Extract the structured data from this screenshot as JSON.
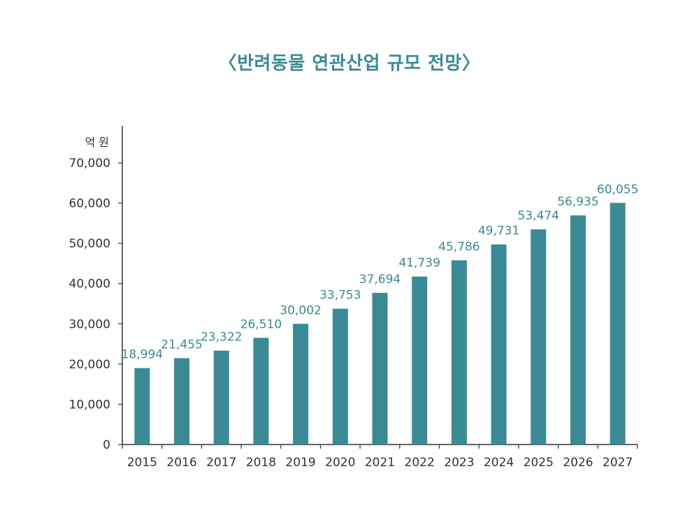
{
  "chart_data": {
    "type": "bar",
    "title": "〈반려동물 연관산업 규모 전망〉",
    "ylabel": "억 원",
    "xlabel": "",
    "ylim": [
      0,
      70000
    ],
    "yticks": [
      0,
      10000,
      20000,
      30000,
      40000,
      50000,
      60000,
      70000
    ],
    "ytick_labels": [
      "0",
      "10,000",
      "20,000",
      "30,000",
      "40,000",
      "50,000",
      "60,000",
      "70,000"
    ],
    "categories": [
      "2015",
      "2016",
      "2017",
      "2018",
      "2019",
      "2020",
      "2021",
      "2022",
      "2023",
      "2024",
      "2025",
      "2026",
      "2027"
    ],
    "values": [
      18994,
      21455,
      23322,
      26510,
      30002,
      33753,
      37694,
      41739,
      45786,
      49731,
      53474,
      56935,
      60055
    ],
    "value_labels": [
      "18,994",
      "21,455",
      "23,322",
      "26,510",
      "30,002",
      "33,753",
      "37,694",
      "41,739",
      "45,786",
      "49,731",
      "53,474",
      "56,935",
      "60,055"
    ],
    "bar_color": "#3a8a96",
    "label_color": "#3a8a96",
    "grid": false,
    "legend": "none"
  }
}
